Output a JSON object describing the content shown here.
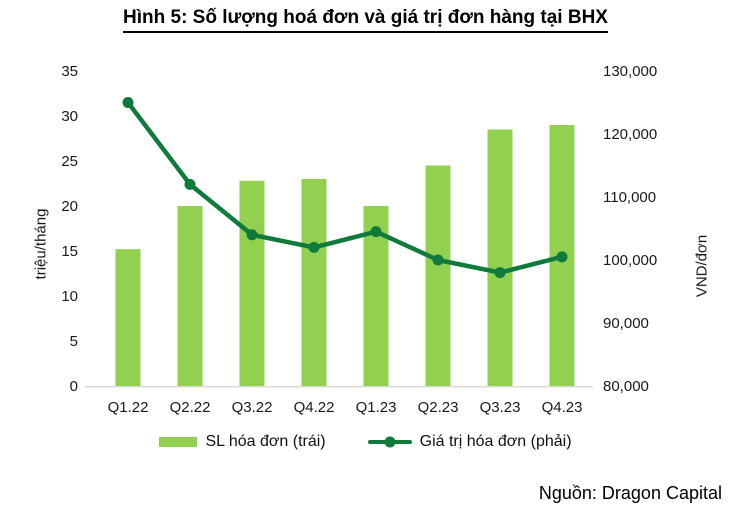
{
  "title": "Hình 5: Số lượng hoá đơn và giá trị đơn hàng tại BHX",
  "source": "Nguồn: Dragon Capital",
  "legend": {
    "bar_label": "SL hóa đơn (trái)",
    "line_label": "Giá trị hóa đơn (phải)"
  },
  "colors": {
    "bar": "#92D050",
    "line": "#0E7B3C",
    "axis_line": "#D9D9D9",
    "tick_text": "#1a1a1a"
  },
  "chart_data": {
    "type": "bar",
    "subtype": "bar+line combo, dual axis",
    "title": "Hình 5: Số lượng hoá đơn và giá trị đơn hàng tại BHX",
    "categories": [
      "Q1.22",
      "Q2.22",
      "Q3.22",
      "Q4.22",
      "Q1.23",
      "Q2.23",
      "Q3.23",
      "Q4.23"
    ],
    "series": [
      {
        "name": "SL hóa đơn (trái)",
        "type": "bar",
        "axis": "left",
        "values": [
          15.2,
          20,
          22.8,
          23,
          20,
          24.5,
          28.5,
          29
        ]
      },
      {
        "name": "Giá trị hóa đơn (phải)",
        "type": "line",
        "axis": "right",
        "values": [
          125000,
          112000,
          104000,
          102000,
          104500,
          100000,
          98000,
          100500
        ]
      }
    ],
    "left_axis": {
      "label": "triệu/tháng",
      "min": 0,
      "max": 35,
      "step": 5,
      "tick_labels": [
        "0",
        "5",
        "10",
        "15",
        "20",
        "25",
        "30",
        "35"
      ]
    },
    "right_axis": {
      "label": "VND/đơn",
      "min": 80000,
      "max": 130000,
      "step": 10000,
      "tick_labels": [
        "80,000",
        "90,000",
        "100,000",
        "110,000",
        "120,000",
        "130,000"
      ]
    },
    "grid": false,
    "legend_position": "bottom"
  }
}
